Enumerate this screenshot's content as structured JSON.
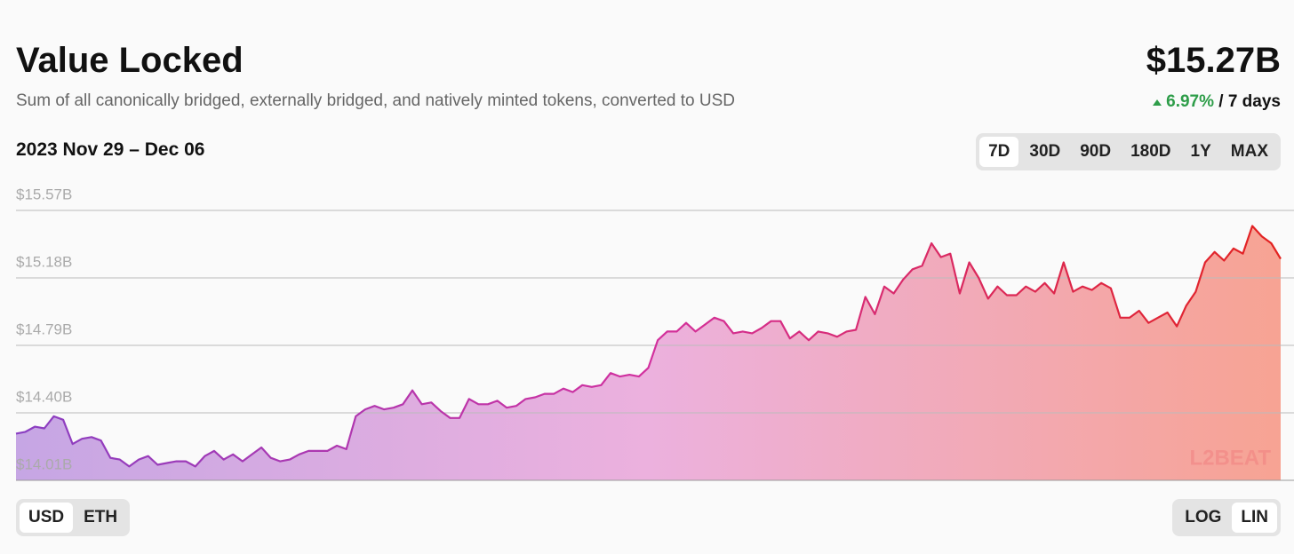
{
  "header": {
    "title": "Value Locked",
    "subtitle": "Sum of all canonically bridged, externally bridged, and natively minted tokens, converted to USD",
    "total": "$15.27B",
    "change": "6.97%",
    "change_period": "/ 7 days",
    "date_range": "2023 Nov 29 – Dec 06",
    "ranges": [
      "7D",
      "30D",
      "90D",
      "180D",
      "1Y",
      "MAX"
    ],
    "selected_range": 0,
    "currencies": [
      "USD",
      "ETH"
    ],
    "selected_currency": 0,
    "scales": [
      "LOG",
      "LIN"
    ],
    "selected_scale": 1
  },
  "chart_data": {
    "type": "area",
    "watermark": "L2BEAT",
    "values": [
      14.28,
      14.29,
      14.32,
      14.31,
      14.38,
      14.36,
      14.22,
      14.25,
      14.26,
      14.24,
      14.14,
      14.13,
      14.09,
      14.13,
      14.15,
      14.1,
      14.11,
      14.12,
      14.12,
      14.09,
      14.15,
      14.18,
      14.13,
      14.16,
      14.12,
      14.16,
      14.2,
      14.14,
      14.12,
      14.13,
      14.16,
      14.18,
      14.18,
      14.18,
      14.21,
      14.19,
      14.38,
      14.42,
      14.44,
      14.42,
      14.43,
      14.45,
      14.53,
      14.45,
      14.46,
      14.41,
      14.37,
      14.37,
      14.48,
      14.45,
      14.45,
      14.47,
      14.43,
      14.44,
      14.48,
      14.49,
      14.51,
      14.51,
      14.54,
      14.52,
      14.56,
      14.55,
      14.56,
      14.63,
      14.61,
      14.62,
      14.61,
      14.66,
      14.82,
      14.87,
      14.87,
      14.92,
      14.87,
      14.91,
      14.95,
      14.93,
      14.86,
      14.87,
      14.86,
      14.89,
      14.93,
      14.93,
      14.83,
      14.87,
      14.82,
      14.87,
      14.86,
      14.84,
      14.87,
      14.88,
      15.07,
      14.97,
      15.13,
      15.09,
      15.17,
      15.23,
      15.25,
      15.38,
      15.3,
      15.32,
      15.09,
      15.27,
      15.18,
      15.06,
      15.13,
      15.08,
      15.08,
      15.13,
      15.1,
      15.15,
      15.09,
      15.27,
      15.1,
      15.13,
      15.11,
      15.15,
      15.12,
      14.95,
      14.95,
      14.99,
      14.92,
      14.95,
      14.98,
      14.9,
      15.02,
      15.1,
      15.27,
      15.33,
      15.28,
      15.35,
      15.32,
      15.48,
      15.42,
      15.38,
      15.29
    ],
    "ylim": [
      14.01,
      15.57
    ],
    "yticks": [
      {
        "value": 14.01,
        "label": "$14.01B"
      },
      {
        "value": 14.4,
        "label": "$14.40B"
      },
      {
        "value": 14.79,
        "label": "$14.79B"
      },
      {
        "value": 15.18,
        "label": "$15.18B"
      },
      {
        "value": 15.57,
        "label": "$15.57B"
      }
    ],
    "grid": true,
    "log_scale": false,
    "line_colors": [
      "#8a3fc2",
      "#d2309e",
      "#e3221f"
    ],
    "fill_colors": [
      "#c6a6e4",
      "#ecb1de",
      "#f7a393"
    ]
  }
}
